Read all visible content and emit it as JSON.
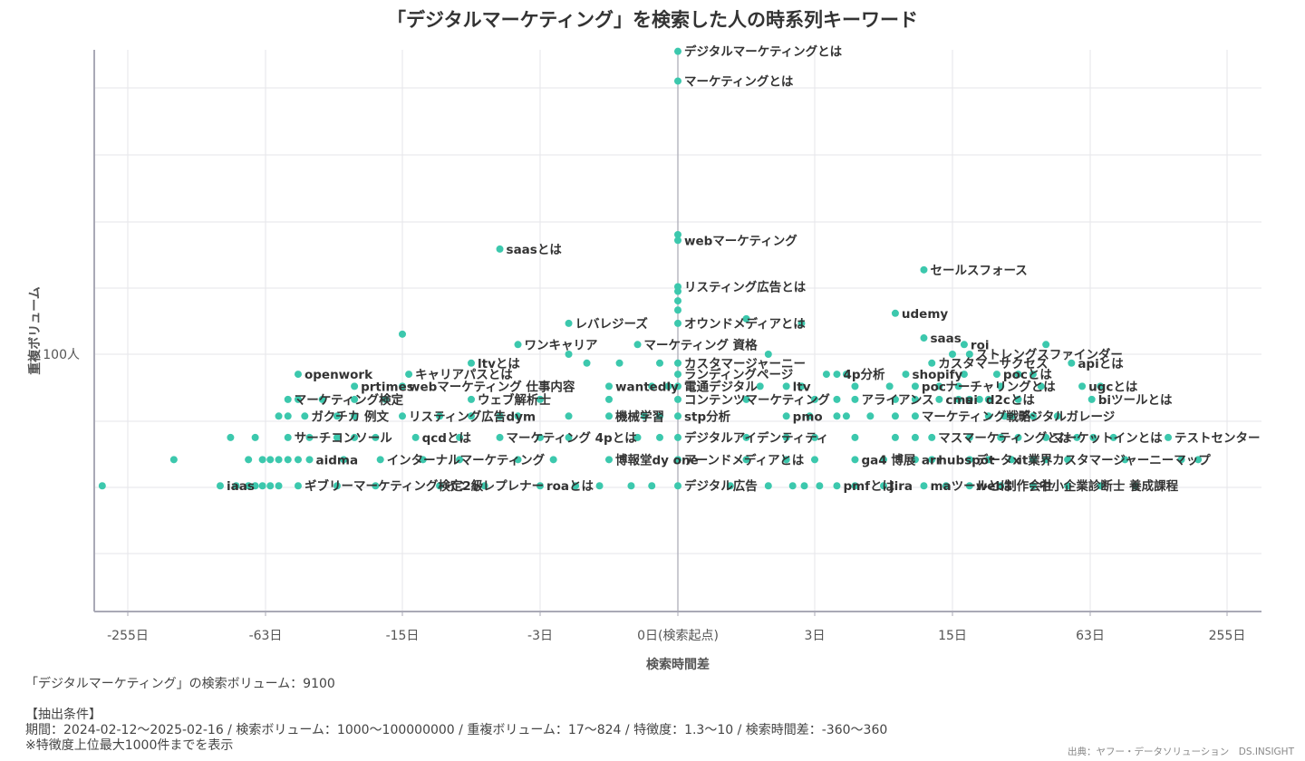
{
  "chart_data": {
    "type": "scatter",
    "title": "「デジタルマーケティング」を検索した人の時系列キーワード",
    "xlabel": "検索時間差",
    "ylabel": "重複ボリューム",
    "x_ticks": [
      {
        "t": -255,
        "label": "-255日"
      },
      {
        "t": -63,
        "label": "-63日"
      },
      {
        "t": -15,
        "label": "-15日"
      },
      {
        "t": -3,
        "label": "-3日"
      },
      {
        "t": 0,
        "label": "0日(検索起点)"
      },
      {
        "t": 3,
        "label": "3日"
      },
      {
        "t": 15,
        "label": "15日"
      },
      {
        "t": 63,
        "label": "63日"
      },
      {
        "t": 255,
        "label": "255日"
      }
    ],
    "y_ticks": [
      {
        "value": 100,
        "label": "100人"
      }
    ],
    "color": "#3cc8ad",
    "labeled_points": [
      {
        "label": "デジタルマーケティングとは",
        "x": 0,
        "y": 824
      },
      {
        "label": "マーケティングとは",
        "x": 0,
        "y": 670
      },
      {
        "label": "webマーケティング",
        "x": 0,
        "y": 221
      },
      {
        "label": "saasとは",
        "x": -5,
        "y": 208
      },
      {
        "label": "セールスフォース",
        "x": 11,
        "y": 180
      },
      {
        "label": "リスティング広告とは",
        "x": 0,
        "y": 160
      },
      {
        "label": "udemy",
        "x": 8,
        "y": 133
      },
      {
        "label": "レバレジーズ",
        "x": -2,
        "y": 124
      },
      {
        "label": "オウンドメディアとは",
        "x": 0,
        "y": 124
      },
      {
        "label": "saas",
        "x": 11,
        "y": 112
      },
      {
        "label": "ワンキャリア",
        "x": -4,
        "y": 107
      },
      {
        "label": "マーケティング 資格",
        "x": -0.5,
        "y": 107
      },
      {
        "label": "roi",
        "x": 17,
        "y": 107
      },
      {
        "label": "ストレングスファインダー",
        "x": 18,
        "y": 100
      },
      {
        "label": "ltvとは",
        "x": -7,
        "y": 94
      },
      {
        "label": "カスタマージャーニー",
        "x": 0,
        "y": 94
      },
      {
        "label": "カスタマーサクセス",
        "x": 12,
        "y": 94
      },
      {
        "label": "apiとは",
        "x": 52,
        "y": 94
      },
      {
        "label": "openwork",
        "x": -45,
        "y": 87
      },
      {
        "label": "キャリアパスとは",
        "x": -14,
        "y": 87
      },
      {
        "label": "ランディングページ",
        "x": 0,
        "y": 87
      },
      {
        "label": "4p分析",
        "x": 4,
        "y": 87
      },
      {
        "label": "shopify",
        "x": 9,
        "y": 87
      },
      {
        "label": "pocとは",
        "x": 24,
        "y": 87
      },
      {
        "label": "prtimes",
        "x": -25,
        "y": 80
      },
      {
        "label": "webマーケティング 仕事内容",
        "x": -15,
        "y": 80
      },
      {
        "label": "wantedly",
        "x": -1,
        "y": 80
      },
      {
        "label": "電通デジタル",
        "x": 0,
        "y": 80
      },
      {
        "label": "ltv",
        "x": 2,
        "y": 80
      },
      {
        "label": "poc",
        "x": 10,
        "y": 80
      },
      {
        "label": "ナーチャリングとは",
        "x": 13,
        "y": 80
      },
      {
        "label": "ugcとは",
        "x": 58,
        "y": 80
      },
      {
        "label": "マーケティング検定",
        "x": -50,
        "y": 73
      },
      {
        "label": "ウェブ解析士",
        "x": -7,
        "y": 73
      },
      {
        "label": "コンテンツマーケティング",
        "x": 0,
        "y": 73
      },
      {
        "label": "アライアンス",
        "x": 5,
        "y": 73
      },
      {
        "label": "cms",
        "x": 13,
        "y": 73
      },
      {
        "label": "ui",
        "x": 16,
        "y": 73
      },
      {
        "label": "d2cとは",
        "x": 20,
        "y": 73
      },
      {
        "label": "biツールとは",
        "x": 64,
        "y": 73
      },
      {
        "label": "ガクチカ 例文",
        "x": -42,
        "y": 65
      },
      {
        "label": "リスティング広告",
        "x": -15,
        "y": 65
      },
      {
        "label": "dym",
        "x": -5,
        "y": 65
      },
      {
        "label": "機械学習",
        "x": -1,
        "y": 65
      },
      {
        "label": "stp分析",
        "x": 0,
        "y": 65
      },
      {
        "label": "pmo",
        "x": 2,
        "y": 65
      },
      {
        "label": "マーケティング戦略",
        "x": 10,
        "y": 65
      },
      {
        "label": "デジタルガレージ",
        "x": 28,
        "y": 65
      },
      {
        "label": "サーチコンソール",
        "x": -50,
        "y": 56
      },
      {
        "label": "qcdとは",
        "x": -13,
        "y": 56
      },
      {
        "label": "マーケティング 4pとは",
        "x": -5,
        "y": 56
      },
      {
        "label": "デジタルアイデンティティ",
        "x": 0,
        "y": 56
      },
      {
        "label": "マスマーケティングとは",
        "x": 12,
        "y": 56
      },
      {
        "label": "マーケットインとは",
        "x": 40,
        "y": 56
      },
      {
        "label": "テストセンター",
        "x": 140,
        "y": 56
      },
      {
        "label": "aidma",
        "x": -40,
        "y": 48
      },
      {
        "label": "インターナルマーケティング",
        "x": -19,
        "y": 48
      },
      {
        "label": "博報堂dy one",
        "x": -1,
        "y": 48
      },
      {
        "label": "アーンドメディアとは",
        "x": 0,
        "y": 48
      },
      {
        "label": "ga4 博展",
        "x": 5,
        "y": 48
      },
      {
        "label": "arr",
        "x": 10,
        "y": 48
      },
      {
        "label": "hubspot",
        "x": 12,
        "y": 48
      },
      {
        "label": "データx",
        "x": 18,
        "y": 48
      },
      {
        "label": "it業界",
        "x": 28,
        "y": 48
      },
      {
        "label": "カスタマージャーニーマップ",
        "x": 40,
        "y": 48
      },
      {
        "label": "iaas",
        "x": -100,
        "y": 40
      },
      {
        "label": "ギブリーマーケティング検定2級",
        "x": -45,
        "y": 40
      },
      {
        "label": "イントレプレナー",
        "x": -10,
        "y": 40
      },
      {
        "label": "roaとは",
        "x": -3,
        "y": 40
      },
      {
        "label": "デジタル広告",
        "x": 0,
        "y": 40
      },
      {
        "label": "pmfとは",
        "x": 4,
        "y": 40
      },
      {
        "label": "jira",
        "x": 7,
        "y": 40
      },
      {
        "label": "maツールとは",
        "x": 11,
        "y": 40
      },
      {
        "label": "web制作会社",
        "x": 18,
        "y": 40
      },
      {
        "label": "中小企業診断士 養成課程",
        "x": 35,
        "y": 40
      }
    ],
    "unlabeled_points": [
      {
        "x": 0,
        "y": 230
      },
      {
        "x": -15,
        "y": 115
      },
      {
        "x": 1,
        "y": 128
      },
      {
        "x": 0,
        "y": 155
      },
      {
        "x": 0,
        "y": 145
      },
      {
        "x": 0,
        "y": 136
      },
      {
        "x": 2.5,
        "y": 124
      },
      {
        "x": -2,
        "y": 100
      },
      {
        "x": 1.5,
        "y": 100
      },
      {
        "x": 15,
        "y": 100
      },
      {
        "x": 40,
        "y": 107
      },
      {
        "x": -1.5,
        "y": 94
      },
      {
        "x": -0.8,
        "y": 94
      },
      {
        "x": -0.2,
        "y": 94
      },
      {
        "x": 17,
        "y": 87
      },
      {
        "x": 30,
        "y": 87
      },
      {
        "x": 35,
        "y": 87
      },
      {
        "x": 3.5,
        "y": 87
      },
      {
        "x": 4.5,
        "y": 87
      },
      {
        "x": -0.3,
        "y": 80
      },
      {
        "x": -0.1,
        "y": 80
      },
      {
        "x": 1.3,
        "y": 80
      },
      {
        "x": 2.5,
        "y": 80
      },
      {
        "x": 5,
        "y": 80
      },
      {
        "x": 7.5,
        "y": 80
      },
      {
        "x": 16,
        "y": 80
      },
      {
        "x": 25,
        "y": 80
      },
      {
        "x": 38,
        "y": 80
      },
      {
        "x": 70,
        "y": 80
      },
      {
        "x": -45,
        "y": 73
      },
      {
        "x": -35,
        "y": 73
      },
      {
        "x": -25,
        "y": 73
      },
      {
        "x": -18,
        "y": 73
      },
      {
        "x": -3,
        "y": 73
      },
      {
        "x": -1,
        "y": 73
      },
      {
        "x": 1,
        "y": 73
      },
      {
        "x": 3,
        "y": 73
      },
      {
        "x": 4,
        "y": 73
      },
      {
        "x": 8,
        "y": 73
      },
      {
        "x": 10,
        "y": 73
      },
      {
        "x": 18,
        "y": 73
      },
      {
        "x": 22,
        "y": 73
      },
      {
        "x": 30,
        "y": 73
      },
      {
        "x": -55,
        "y": 65
      },
      {
        "x": -50,
        "y": 65
      },
      {
        "x": -30,
        "y": 65
      },
      {
        "x": -25,
        "y": 65
      },
      {
        "x": -10,
        "y": 65
      },
      {
        "x": -7,
        "y": 65
      },
      {
        "x": -4,
        "y": 65
      },
      {
        "x": -2,
        "y": 65
      },
      {
        "x": -0.4,
        "y": 65
      },
      {
        "x": -0.2,
        "y": 65
      },
      {
        "x": 2.8,
        "y": 65
      },
      {
        "x": 4,
        "y": 65
      },
      {
        "x": 4.5,
        "y": 65
      },
      {
        "x": 6,
        "y": 65
      },
      {
        "x": 8,
        "y": 65
      },
      {
        "x": 22,
        "y": 65
      },
      {
        "x": 26,
        "y": 65
      },
      {
        "x": 35,
        "y": 65
      },
      {
        "x": 45,
        "y": 65
      },
      {
        "x": -90,
        "y": 56
      },
      {
        "x": -70,
        "y": 56
      },
      {
        "x": -40,
        "y": 56
      },
      {
        "x": -30,
        "y": 56
      },
      {
        "x": -25,
        "y": 56
      },
      {
        "x": -20,
        "y": 56
      },
      {
        "x": -8,
        "y": 56
      },
      {
        "x": -3,
        "y": 56
      },
      {
        "x": -2,
        "y": 56
      },
      {
        "x": -0.5,
        "y": 56
      },
      {
        "x": -0.2,
        "y": 56
      },
      {
        "x": 1,
        "y": 56
      },
      {
        "x": 2,
        "y": 56
      },
      {
        "x": 3,
        "y": 56
      },
      {
        "x": 5,
        "y": 56
      },
      {
        "x": 8,
        "y": 56
      },
      {
        "x": 10,
        "y": 56
      },
      {
        "x": 18,
        "y": 56
      },
      {
        "x": 25,
        "y": 56
      },
      {
        "x": 30,
        "y": 56
      },
      {
        "x": 55,
        "y": 56
      },
      {
        "x": 65,
        "y": 56
      },
      {
        "x": 80,
        "y": 56
      },
      {
        "x": -160,
        "y": 48
      },
      {
        "x": -75,
        "y": 48
      },
      {
        "x": -65,
        "y": 48
      },
      {
        "x": -60,
        "y": 48
      },
      {
        "x": -55,
        "y": 48
      },
      {
        "x": -50,
        "y": 48
      },
      {
        "x": -45,
        "y": 48
      },
      {
        "x": -28,
        "y": 48
      },
      {
        "x": -12,
        "y": 48
      },
      {
        "x": -8,
        "y": 48
      },
      {
        "x": -4,
        "y": 48
      },
      {
        "x": -2.5,
        "y": 48
      },
      {
        "x": 1,
        "y": 48
      },
      {
        "x": 2,
        "y": 48
      },
      {
        "x": 3,
        "y": 48
      },
      {
        "x": 7,
        "y": 48
      },
      {
        "x": 22,
        "y": 48
      },
      {
        "x": 35,
        "y": 48
      },
      {
        "x": 50,
        "y": 48
      },
      {
        "x": 90,
        "y": 48
      },
      {
        "x": 160,
        "y": 48
      },
      {
        "x": 190,
        "y": 48
      },
      {
        "x": -330,
        "y": 40
      },
      {
        "x": -85,
        "y": 40
      },
      {
        "x": -75,
        "y": 40
      },
      {
        "x": -70,
        "y": 40
      },
      {
        "x": -65,
        "y": 40
      },
      {
        "x": -60,
        "y": 40
      },
      {
        "x": -55,
        "y": 40
      },
      {
        "x": -30,
        "y": 40
      },
      {
        "x": -20,
        "y": 40
      },
      {
        "x": -6,
        "y": 40
      },
      {
        "x": -1.8,
        "y": 40
      },
      {
        "x": -1.2,
        "y": 40
      },
      {
        "x": -0.6,
        "y": 40
      },
      {
        "x": -0.3,
        "y": 40
      },
      {
        "x": 0.7,
        "y": 40
      },
      {
        "x": 1.5,
        "y": 40
      },
      {
        "x": 2.2,
        "y": 40
      },
      {
        "x": 2.6,
        "y": 40
      },
      {
        "x": 3.2,
        "y": 40
      },
      {
        "x": 5,
        "y": 40
      },
      {
        "x": 14,
        "y": 40
      },
      {
        "x": 25,
        "y": 40
      },
      {
        "x": 50,
        "y": 40
      },
      {
        "x": 70,
        "y": 40
      },
      {
        "x": 100,
        "y": 40
      }
    ]
  },
  "footer": {
    "volume_line": "「デジタルマーケティング」の検索ボリューム：9100",
    "conditions_header": "【抽出条件】",
    "conditions_line": "期間：2024-02-12～2025-02-16 / 検索ボリューム：1000～100000000 / 重複ボリューム：17～824 / 特徴度：1.3～10 / 検索時間差：-360～360",
    "note_line": "※特徴度上位最大1000件までを表示",
    "source": "出典：ヤフー・データソリューション　DS.INSIGHT"
  }
}
